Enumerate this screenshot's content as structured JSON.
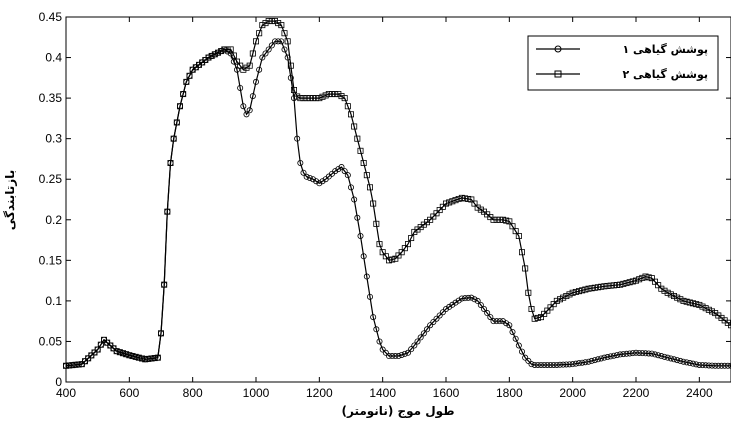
{
  "chart_data": {
    "type": "line",
    "title": "",
    "xlabel": "طول موج (نانومتر)",
    "ylabel": "بازتابندگی",
    "xlim": [
      400,
      2500
    ],
    "ylim": [
      0,
      0.45
    ],
    "xticks": [
      400,
      600,
      800,
      1000,
      1200,
      1400,
      1600,
      1800,
      2000,
      2200,
      2400
    ],
    "yticks": [
      0,
      0.05,
      0.1,
      0.15,
      0.2,
      0.25,
      0.3,
      0.35,
      0.4,
      0.45
    ],
    "xtick_labels": [
      "400",
      "600",
      "800",
      "1000",
      "1200",
      "1400",
      "1600",
      "1800",
      "2000",
      "2200",
      "2400"
    ],
    "ytick_labels": [
      "0",
      "0.05",
      "0.1",
      "0.15",
      "0.2",
      "0.25",
      "0.3",
      "0.35",
      "0.4",
      "0.45"
    ],
    "grid": false,
    "legend_position": "top-right",
    "series": [
      {
        "name": "پوشش گیاهی ۱",
        "marker": "circle",
        "color": "#000000",
        "x": [
          400,
          450,
          500,
          520,
          540,
          560,
          600,
          650,
          690,
          700,
          710,
          720,
          730,
          740,
          760,
          780,
          800,
          850,
          900,
          920,
          940,
          960,
          970,
          980,
          1000,
          1020,
          1040,
          1060,
          1080,
          1100,
          1120,
          1130,
          1140,
          1150,
          1160,
          1180,
          1200,
          1220,
          1250,
          1270,
          1290,
          1310,
          1330,
          1350,
          1370,
          1390,
          1400,
          1420,
          1450,
          1480,
          1500,
          1550,
          1600,
          1650,
          1680,
          1700,
          1720,
          1750,
          1780,
          1800,
          1830,
          1850,
          1870,
          1880,
          1900,
          1950,
          2000,
          2050,
          2100,
          2150,
          2200,
          2250,
          2300,
          2350,
          2400,
          2450,
          2500
        ],
        "y": [
          0.02,
          0.022,
          0.04,
          0.052,
          0.045,
          0.038,
          0.033,
          0.028,
          0.03,
          0.06,
          0.12,
          0.21,
          0.27,
          0.3,
          0.34,
          0.37,
          0.385,
          0.4,
          0.41,
          0.405,
          0.385,
          0.34,
          0.33,
          0.335,
          0.37,
          0.4,
          0.41,
          0.42,
          0.42,
          0.4,
          0.35,
          0.3,
          0.27,
          0.258,
          0.253,
          0.25,
          0.245,
          0.25,
          0.26,
          0.265,
          0.255,
          0.225,
          0.18,
          0.13,
          0.08,
          0.05,
          0.04,
          0.032,
          0.032,
          0.036,
          0.045,
          0.07,
          0.09,
          0.103,
          0.104,
          0.1,
          0.09,
          0.075,
          0.075,
          0.07,
          0.045,
          0.03,
          0.022,
          0.021,
          0.021,
          0.021,
          0.022,
          0.025,
          0.03,
          0.034,
          0.036,
          0.035,
          0.03,
          0.025,
          0.021,
          0.02,
          0.02
        ]
      },
      {
        "name": "پوشش گیاهی ۲",
        "marker": "square",
        "color": "#000000",
        "x": [
          400,
          450,
          500,
          520,
          540,
          560,
          600,
          650,
          690,
          700,
          710,
          720,
          730,
          740,
          760,
          780,
          800,
          850,
          900,
          920,
          940,
          960,
          980,
          1000,
          1020,
          1040,
          1060,
          1080,
          1100,
          1110,
          1120,
          1130,
          1140,
          1150,
          1180,
          1200,
          1230,
          1260,
          1280,
          1300,
          1320,
          1340,
          1360,
          1370,
          1380,
          1390,
          1400,
          1420,
          1440,
          1460,
          1480,
          1500,
          1550,
          1600,
          1650,
          1680,
          1700,
          1720,
          1750,
          1780,
          1800,
          1830,
          1850,
          1860,
          1870,
          1880,
          1900,
          1950,
          2000,
          2050,
          2100,
          2150,
          2200,
          2230,
          2250,
          2280,
          2300,
          2350,
          2400,
          2450,
          2500
        ],
        "y": [
          0.02,
          0.022,
          0.04,
          0.052,
          0.045,
          0.038,
          0.033,
          0.028,
          0.03,
          0.06,
          0.12,
          0.21,
          0.27,
          0.3,
          0.34,
          0.37,
          0.385,
          0.4,
          0.41,
          0.41,
          0.395,
          0.385,
          0.39,
          0.42,
          0.44,
          0.445,
          0.445,
          0.44,
          0.42,
          0.39,
          0.36,
          0.352,
          0.35,
          0.35,
          0.35,
          0.35,
          0.355,
          0.355,
          0.35,
          0.33,
          0.3,
          0.27,
          0.24,
          0.22,
          0.195,
          0.17,
          0.16,
          0.15,
          0.152,
          0.16,
          0.17,
          0.185,
          0.2,
          0.22,
          0.227,
          0.225,
          0.215,
          0.21,
          0.2,
          0.2,
          0.198,
          0.18,
          0.14,
          0.11,
          0.09,
          0.078,
          0.08,
          0.1,
          0.11,
          0.115,
          0.118,
          0.12,
          0.125,
          0.13,
          0.128,
          0.115,
          0.11,
          0.1,
          0.095,
          0.085,
          0.07
        ]
      }
    ]
  }
}
